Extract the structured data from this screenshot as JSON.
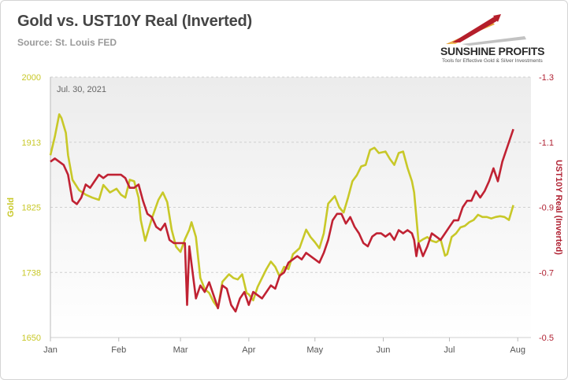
{
  "header": {
    "title": "Gold vs. UST10Y Real (Inverted)",
    "source": "Source: St. Louis FED"
  },
  "logo": {
    "name": "SUNSHINE PROFITS",
    "tagline": "Tools for Effective Gold & Silver Investments"
  },
  "colors": {
    "gold": "#c8c828",
    "ust": "#c02233",
    "grid": "#cfcfcf",
    "plot_top": "#f2f2f2",
    "plot_bottom": "#ffffff"
  },
  "chart_data": {
    "type": "line",
    "annotation": "Jul. 30, 2021",
    "x_months": [
      "Jan",
      "Feb",
      "Mar",
      "Apr",
      "May",
      "Jun",
      "Jul",
      "Aug"
    ],
    "x_range": [
      "2021-01-01",
      "2021-08-07"
    ],
    "y_left": {
      "label": "Gold",
      "ticks": [
        "2000",
        "1913",
        "1825",
        "1738",
        "1650"
      ],
      "range": [
        1650,
        2000
      ]
    },
    "y_right": {
      "label": "UST10Y Real (Inverted)",
      "ticks": [
        "-1.3",
        "-1.1",
        "-0.9",
        "-0.7",
        "-0.5"
      ],
      "range": [
        -1.3,
        -0.5
      ],
      "inverted": true
    },
    "series": [
      {
        "name": "Gold",
        "axis": "left",
        "points": [
          [
            "2021-01-01",
            1895
          ],
          [
            "2021-01-03",
            1920
          ],
          [
            "2021-01-05",
            1950
          ],
          [
            "2021-01-06",
            1945
          ],
          [
            "2021-01-08",
            1925
          ],
          [
            "2021-01-09",
            1895
          ],
          [
            "2021-01-11",
            1862
          ],
          [
            "2021-01-14",
            1848
          ],
          [
            "2021-01-17",
            1842
          ],
          [
            "2021-01-20",
            1838
          ],
          [
            "2021-01-23",
            1835
          ],
          [
            "2021-01-25",
            1855
          ],
          [
            "2021-01-28",
            1845
          ],
          [
            "2021-01-31",
            1850
          ],
          [
            "2021-02-02",
            1842
          ],
          [
            "2021-02-04",
            1838
          ],
          [
            "2021-02-06",
            1862
          ],
          [
            "2021-02-08",
            1860
          ],
          [
            "2021-02-10",
            1838
          ],
          [
            "2021-02-11",
            1808
          ],
          [
            "2021-02-13",
            1780
          ],
          [
            "2021-02-16",
            1810
          ],
          [
            "2021-02-19",
            1835
          ],
          [
            "2021-02-21",
            1845
          ],
          [
            "2021-02-23",
            1832
          ],
          [
            "2021-02-25",
            1795
          ],
          [
            "2021-02-27",
            1772
          ],
          [
            "2021-03-01",
            1765
          ],
          [
            "2021-03-03",
            1782
          ],
          [
            "2021-03-05",
            1795
          ],
          [
            "2021-03-06",
            1805
          ],
          [
            "2021-03-08",
            1785
          ],
          [
            "2021-03-10",
            1730
          ],
          [
            "2021-03-12",
            1715
          ],
          [
            "2021-03-14",
            1710
          ],
          [
            "2021-03-16",
            1698
          ],
          [
            "2021-03-18",
            1690
          ],
          [
            "2021-03-20",
            1725
          ],
          [
            "2021-03-23",
            1735
          ],
          [
            "2021-03-25",
            1730
          ],
          [
            "2021-03-27",
            1728
          ],
          [
            "2021-03-29",
            1735
          ],
          [
            "2021-03-31",
            1710
          ],
          [
            "2021-04-01",
            1708
          ],
          [
            "2021-04-03",
            1700
          ],
          [
            "2021-04-05",
            1718
          ],
          [
            "2021-04-07",
            1730
          ],
          [
            "2021-04-09",
            1742
          ],
          [
            "2021-04-11",
            1752
          ],
          [
            "2021-04-13",
            1745
          ],
          [
            "2021-04-15",
            1732
          ],
          [
            "2021-04-17",
            1745
          ],
          [
            "2021-04-19",
            1742
          ],
          [
            "2021-04-21",
            1762
          ],
          [
            "2021-04-24",
            1770
          ],
          [
            "2021-04-27",
            1795
          ],
          [
            "2021-04-29",
            1785
          ],
          [
            "2021-05-01",
            1778
          ],
          [
            "2021-05-03",
            1770
          ],
          [
            "2021-05-05",
            1790
          ],
          [
            "2021-05-07",
            1830
          ],
          [
            "2021-05-10",
            1840
          ],
          [
            "2021-05-12",
            1825
          ],
          [
            "2021-05-14",
            1818
          ],
          [
            "2021-05-16",
            1838
          ],
          [
            "2021-05-18",
            1860
          ],
          [
            "2021-05-20",
            1868
          ],
          [
            "2021-05-22",
            1880
          ],
          [
            "2021-05-24",
            1882
          ],
          [
            "2021-05-26",
            1902
          ],
          [
            "2021-05-28",
            1905
          ],
          [
            "2021-05-30",
            1898
          ],
          [
            "2021-06-02",
            1900
          ],
          [
            "2021-06-04",
            1890
          ],
          [
            "2021-06-06",
            1882
          ],
          [
            "2021-06-08",
            1898
          ],
          [
            "2021-06-10",
            1900
          ],
          [
            "2021-06-12",
            1878
          ],
          [
            "2021-06-14",
            1860
          ],
          [
            "2021-06-15",
            1845
          ],
          [
            "2021-06-16",
            1812
          ],
          [
            "2021-06-17",
            1778
          ],
          [
            "2021-06-19",
            1782
          ],
          [
            "2021-06-21",
            1785
          ],
          [
            "2021-06-23",
            1780
          ],
          [
            "2021-06-25",
            1778
          ],
          [
            "2021-06-27",
            1782
          ],
          [
            "2021-06-29",
            1760
          ],
          [
            "2021-06-30",
            1762
          ],
          [
            "2021-07-02",
            1785
          ],
          [
            "2021-07-04",
            1790
          ],
          [
            "2021-07-06",
            1798
          ],
          [
            "2021-07-08",
            1800
          ],
          [
            "2021-07-10",
            1805
          ],
          [
            "2021-07-12",
            1808
          ],
          [
            "2021-07-14",
            1815
          ],
          [
            "2021-07-16",
            1812
          ],
          [
            "2021-07-18",
            1812
          ],
          [
            "2021-07-20",
            1810
          ],
          [
            "2021-07-22",
            1812
          ],
          [
            "2021-07-24",
            1813
          ],
          [
            "2021-07-26",
            1812
          ],
          [
            "2021-07-28",
            1808
          ],
          [
            "2021-07-30",
            1828
          ]
        ]
      },
      {
        "name": "UST10Y Real (Inverted)",
        "axis": "right",
        "points": [
          [
            "2021-01-01",
            -1.04
          ],
          [
            "2021-01-03",
            -1.05
          ],
          [
            "2021-01-05",
            -1.04
          ],
          [
            "2021-01-07",
            -1.03
          ],
          [
            "2021-01-09",
            -1.0
          ],
          [
            "2021-01-11",
            -0.92
          ],
          [
            "2021-01-13",
            -0.91
          ],
          [
            "2021-01-15",
            -0.93
          ],
          [
            "2021-01-17",
            -0.97
          ],
          [
            "2021-01-19",
            -0.96
          ],
          [
            "2021-01-21",
            -0.98
          ],
          [
            "2021-01-23",
            -1.0
          ],
          [
            "2021-01-25",
            -0.99
          ],
          [
            "2021-01-27",
            -1.0
          ],
          [
            "2021-01-29",
            -1.0
          ],
          [
            "2021-01-31",
            -1.0
          ],
          [
            "2021-02-02",
            -1.0
          ],
          [
            "2021-02-04",
            -0.99
          ],
          [
            "2021-02-06",
            -0.96
          ],
          [
            "2021-02-08",
            -0.96
          ],
          [
            "2021-02-10",
            -0.97
          ],
          [
            "2021-02-12",
            -0.92
          ],
          [
            "2021-02-14",
            -0.88
          ],
          [
            "2021-02-16",
            -0.87
          ],
          [
            "2021-02-18",
            -0.84
          ],
          [
            "2021-02-20",
            -0.83
          ],
          [
            "2021-02-22",
            -0.85
          ],
          [
            "2021-02-24",
            -0.8
          ],
          [
            "2021-02-26",
            -0.79
          ],
          [
            "2021-02-28",
            -0.79
          ],
          [
            "2021-03-01",
            -0.79
          ],
          [
            "2021-03-03",
            -0.79
          ],
          [
            "2021-03-04",
            -0.6
          ],
          [
            "2021-03-05",
            -0.78
          ],
          [
            "2021-03-08",
            -0.62
          ],
          [
            "2021-03-10",
            -0.66
          ],
          [
            "2021-03-12",
            -0.64
          ],
          [
            "2021-03-14",
            -0.67
          ],
          [
            "2021-03-16",
            -0.63
          ],
          [
            "2021-03-18",
            -0.59
          ],
          [
            "2021-03-20",
            -0.66
          ],
          [
            "2021-03-22",
            -0.65
          ],
          [
            "2021-03-24",
            -0.6
          ],
          [
            "2021-03-26",
            -0.58
          ],
          [
            "2021-03-28",
            -0.62
          ],
          [
            "2021-03-30",
            -0.64
          ],
          [
            "2021-04-01",
            -0.6
          ],
          [
            "2021-04-03",
            -0.64
          ],
          [
            "2021-04-05",
            -0.63
          ],
          [
            "2021-04-07",
            -0.62
          ],
          [
            "2021-04-09",
            -0.64
          ],
          [
            "2021-04-11",
            -0.66
          ],
          [
            "2021-04-13",
            -0.65
          ],
          [
            "2021-04-15",
            -0.69
          ],
          [
            "2021-04-17",
            -0.7
          ],
          [
            "2021-04-19",
            -0.73
          ],
          [
            "2021-04-21",
            -0.74
          ],
          [
            "2021-04-23",
            -0.75
          ],
          [
            "2021-04-25",
            -0.74
          ],
          [
            "2021-04-27",
            -0.76
          ],
          [
            "2021-04-29",
            -0.75
          ],
          [
            "2021-05-01",
            -0.74
          ],
          [
            "2021-05-03",
            -0.73
          ],
          [
            "2021-05-05",
            -0.76
          ],
          [
            "2021-05-07",
            -0.8
          ],
          [
            "2021-05-09",
            -0.86
          ],
          [
            "2021-05-11",
            -0.88
          ],
          [
            "2021-05-13",
            -0.88
          ],
          [
            "2021-05-15",
            -0.85
          ],
          [
            "2021-05-17",
            -0.87
          ],
          [
            "2021-05-19",
            -0.84
          ],
          [
            "2021-05-21",
            -0.82
          ],
          [
            "2021-05-23",
            -0.79
          ],
          [
            "2021-05-25",
            -0.78
          ],
          [
            "2021-05-27",
            -0.81
          ],
          [
            "2021-05-29",
            -0.82
          ],
          [
            "2021-05-31",
            -0.82
          ],
          [
            "2021-06-02",
            -0.81
          ],
          [
            "2021-06-04",
            -0.82
          ],
          [
            "2021-06-06",
            -0.8
          ],
          [
            "2021-06-08",
            -0.83
          ],
          [
            "2021-06-10",
            -0.82
          ],
          [
            "2021-06-12",
            -0.83
          ],
          [
            "2021-06-14",
            -0.82
          ],
          [
            "2021-06-15",
            -0.8
          ],
          [
            "2021-06-16",
            -0.75
          ],
          [
            "2021-06-17",
            -0.79
          ],
          [
            "2021-06-19",
            -0.75
          ],
          [
            "2021-06-21",
            -0.78
          ],
          [
            "2021-06-23",
            -0.82
          ],
          [
            "2021-06-25",
            -0.81
          ],
          [
            "2021-06-27",
            -0.8
          ],
          [
            "2021-06-29",
            -0.82
          ],
          [
            "2021-07-01",
            -0.84
          ],
          [
            "2021-07-03",
            -0.86
          ],
          [
            "2021-07-05",
            -0.86
          ],
          [
            "2021-07-07",
            -0.9
          ],
          [
            "2021-07-09",
            -0.92
          ],
          [
            "2021-07-11",
            -0.92
          ],
          [
            "2021-07-13",
            -0.95
          ],
          [
            "2021-07-15",
            -0.93
          ],
          [
            "2021-07-17",
            -0.95
          ],
          [
            "2021-07-19",
            -0.98
          ],
          [
            "2021-07-21",
            -1.02
          ],
          [
            "2021-07-23",
            -0.98
          ],
          [
            "2021-07-25",
            -1.04
          ],
          [
            "2021-07-27",
            -1.08
          ],
          [
            "2021-07-29",
            -1.12
          ],
          [
            "2021-07-30",
            -1.14
          ]
        ]
      }
    ],
    "grid": true,
    "legend": "none"
  }
}
